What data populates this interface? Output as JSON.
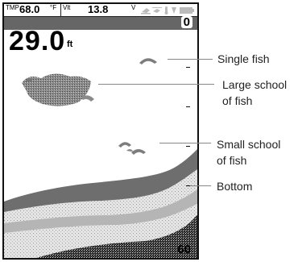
{
  "status": {
    "temp_label": "TMP",
    "temp_value": "68.0",
    "temp_unit": "°F",
    "volt_label": "Vlt",
    "volt_value": "13.8",
    "volt_unit": "V"
  },
  "display": {
    "depth_value": "29.0",
    "depth_unit": "ft",
    "range_top": "0",
    "range_bottom": "60"
  },
  "callouts": {
    "single_fish": "Single fish",
    "large_school_line1": "Large school",
    "large_school_line2": "of fish",
    "small_school_line1": "Small school",
    "small_school_line2": "of fish",
    "bottom": "Bottom"
  },
  "icons": [
    "fish-alarm-icon",
    "fish-id-icon",
    "temp-icon",
    "sonar-icon",
    "battery-icon"
  ],
  "colors": {
    "band": "#666666",
    "bottom_dark": "#6e6e6e",
    "leader": "#888888"
  }
}
